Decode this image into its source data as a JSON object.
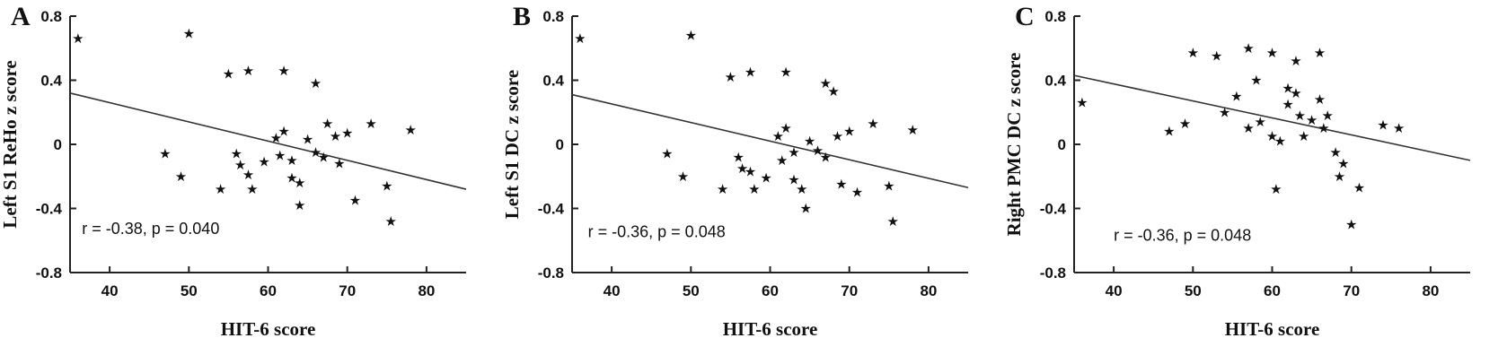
{
  "figure": {
    "background": "#ffffff",
    "ink_color": "#111111",
    "marker_glyph": "★"
  },
  "chart_data": [
    {
      "type": "scatter",
      "panel_label": "A",
      "xlabel": "HIT-6 score",
      "ylabel": "Left S1 ReHo z score",
      "annotation": "r = -0.38, p = 0.040",
      "annotation_pos": [
        36.5,
        -0.56
      ],
      "xlim": [
        35,
        85
      ],
      "ylim": [
        -0.8,
        0.8
      ],
      "xticks": [
        40,
        50,
        60,
        70,
        80
      ],
      "yticks": [
        -0.8,
        -0.4,
        0,
        0.4,
        0.8
      ],
      "ytick_labels": [
        "-0.8",
        "-0.4",
        "0",
        "0.4",
        "0.8"
      ],
      "grid": false,
      "legend": false,
      "regression_line": {
        "x": [
          35,
          85
        ],
        "y": [
          0.32,
          -0.28
        ]
      },
      "points": [
        [
          36,
          0.66
        ],
        [
          50,
          0.69
        ],
        [
          55,
          0.44
        ],
        [
          57.5,
          0.46
        ],
        [
          62,
          0.46
        ],
        [
          66,
          0.38
        ],
        [
          47,
          -0.06
        ],
        [
          49,
          -0.2
        ],
        [
          54,
          -0.28
        ],
        [
          56,
          -0.06
        ],
        [
          56.5,
          -0.13
        ],
        [
          57.5,
          -0.19
        ],
        [
          58,
          -0.28
        ],
        [
          59.5,
          -0.11
        ],
        [
          61,
          0.04
        ],
        [
          62,
          0.08
        ],
        [
          61.5,
          -0.07
        ],
        [
          63,
          -0.1
        ],
        [
          63,
          -0.21
        ],
        [
          64,
          -0.24
        ],
        [
          64,
          -0.38
        ],
        [
          65,
          0.03
        ],
        [
          66,
          -0.05
        ],
        [
          67,
          -0.08
        ],
        [
          67.5,
          0.13
        ],
        [
          68.5,
          0.05
        ],
        [
          69,
          -0.12
        ],
        [
          70,
          0.07
        ],
        [
          71,
          -0.35
        ],
        [
          73,
          0.13
        ],
        [
          75,
          -0.26
        ],
        [
          75.5,
          -0.48
        ],
        [
          78,
          0.09
        ]
      ]
    },
    {
      "type": "scatter",
      "panel_label": "B",
      "xlabel": "HIT-6 score",
      "ylabel": "Left S1 DC z score",
      "annotation": "r = -0.36, p = 0.048",
      "annotation_pos": [
        37,
        -0.58
      ],
      "xlim": [
        35,
        85
      ],
      "ylim": [
        -0.8,
        0.8
      ],
      "xticks": [
        40,
        50,
        60,
        70,
        80
      ],
      "yticks": [
        -0.8,
        -0.4,
        0,
        0.4,
        0.8
      ],
      "ytick_labels": [
        "-0.8",
        "-0.4",
        "0",
        "0.4",
        "0.8"
      ],
      "grid": false,
      "legend": false,
      "regression_line": {
        "x": [
          35,
          85
        ],
        "y": [
          0.31,
          -0.27
        ]
      },
      "points": [
        [
          36,
          0.66
        ],
        [
          50,
          0.68
        ],
        [
          55,
          0.42
        ],
        [
          57.5,
          0.45
        ],
        [
          62,
          0.45
        ],
        [
          67,
          0.38
        ],
        [
          47,
          -0.06
        ],
        [
          49,
          -0.2
        ],
        [
          54,
          -0.28
        ],
        [
          56,
          -0.08
        ],
        [
          56.5,
          -0.15
        ],
        [
          57.5,
          -0.17
        ],
        [
          58,
          -0.28
        ],
        [
          59.5,
          -0.21
        ],
        [
          61,
          0.05
        ],
        [
          62,
          0.1
        ],
        [
          61.5,
          -0.1
        ],
        [
          63,
          -0.05
        ],
        [
          63,
          -0.22
        ],
        [
          64,
          -0.28
        ],
        [
          64.5,
          -0.4
        ],
        [
          65,
          0.02
        ],
        [
          66,
          -0.04
        ],
        [
          67,
          -0.08
        ],
        [
          68,
          0.33
        ],
        [
          68.5,
          0.05
        ],
        [
          69,
          -0.25
        ],
        [
          70,
          0.08
        ],
        [
          71,
          -0.3
        ],
        [
          73,
          0.13
        ],
        [
          75,
          -0.26
        ],
        [
          75.5,
          -0.48
        ],
        [
          78,
          0.09
        ]
      ]
    },
    {
      "type": "scatter",
      "panel_label": "C",
      "xlabel": "HIT-6 score",
      "ylabel": "Right PMC DC z score",
      "annotation": "r = -0.36, p = 0.048",
      "annotation_pos": [
        40,
        -0.6
      ],
      "xlim": [
        35,
        85
      ],
      "ylim": [
        -0.8,
        0.8
      ],
      "xticks": [
        40,
        50,
        60,
        70,
        80
      ],
      "yticks": [
        -0.8,
        -0.4,
        0,
        0.4,
        0.8
      ],
      "ytick_labels": [
        "-0.8",
        "-0.4",
        "0",
        "0.4",
        "0.8"
      ],
      "grid": false,
      "legend": false,
      "regression_line": {
        "x": [
          35,
          85
        ],
        "y": [
          0.43,
          -0.1
        ]
      },
      "points": [
        [
          36,
          0.26
        ],
        [
          50,
          0.57
        ],
        [
          53,
          0.55
        ],
        [
          57,
          0.6
        ],
        [
          60,
          0.57
        ],
        [
          63,
          0.52
        ],
        [
          66,
          0.57
        ],
        [
          47,
          0.08
        ],
        [
          49,
          0.13
        ],
        [
          54,
          0.2
        ],
        [
          55.5,
          0.3
        ],
        [
          57,
          0.1
        ],
        [
          58,
          0.4
        ],
        [
          58.5,
          0.14
        ],
        [
          60,
          0.05
        ],
        [
          60.5,
          -0.28
        ],
        [
          61,
          0.02
        ],
        [
          62,
          0.35
        ],
        [
          62,
          0.25
        ],
        [
          63,
          0.32
        ],
        [
          63.5,
          0.18
        ],
        [
          64,
          0.05
        ],
        [
          65,
          0.15
        ],
        [
          66,
          0.28
        ],
        [
          66.5,
          0.1
        ],
        [
          67,
          0.18
        ],
        [
          68,
          -0.05
        ],
        [
          68.5,
          -0.2
        ],
        [
          69,
          -0.12
        ],
        [
          70,
          -0.5
        ],
        [
          71,
          -0.27
        ],
        [
          74,
          0.12
        ],
        [
          76,
          0.1
        ]
      ]
    }
  ]
}
